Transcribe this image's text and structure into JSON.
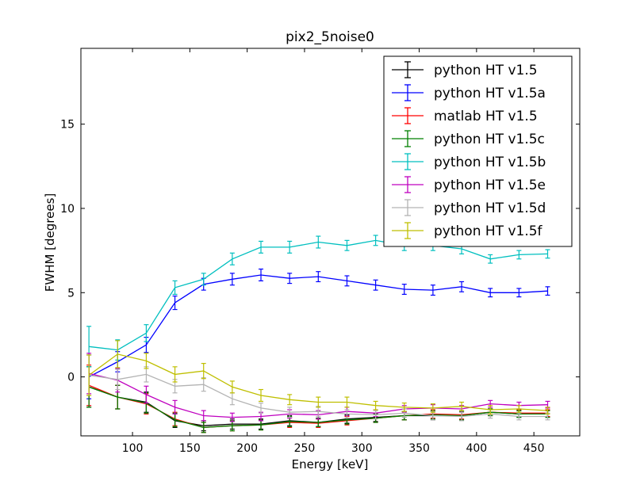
{
  "chart_data": {
    "type": "line",
    "title": "pix2_5noise0",
    "xlabel": "Energy [keV]",
    "ylabel": "FWHM [degrees]",
    "xlim": [
      55,
      490
    ],
    "ylim": [
      -3.5,
      19.5
    ],
    "xticks": [
      100,
      150,
      200,
      250,
      300,
      350,
      400,
      450
    ],
    "yticks": [
      0,
      5,
      10,
      15
    ],
    "grid": false,
    "legend_position": "top-right",
    "x": [
      62,
      87,
      112,
      137,
      162,
      187,
      212,
      237,
      262,
      287,
      312,
      337,
      362,
      387,
      412,
      437,
      462
    ],
    "series": [
      {
        "name": "python HT v1.5",
        "color": "#000000",
        "values": [
          -0.6,
          -1.2,
          -1.5,
          -2.6,
          -2.9,
          -2.8,
          -2.8,
          -2.6,
          -2.7,
          -2.5,
          -2.4,
          -2.3,
          -2.3,
          -2.3,
          -2.1,
          -2.2,
          -2.2
        ],
        "errors": [
          1.2,
          0.7,
          0.6,
          0.4,
          0.3,
          0.3,
          0.3,
          0.3,
          0.25,
          0.25,
          0.25,
          0.25,
          0.25,
          0.25,
          0.2,
          0.2,
          0.2
        ]
      },
      {
        "name": "python HT v1.5a",
        "color": "#0000ff",
        "values": [
          0.0,
          0.9,
          1.9,
          4.4,
          5.5,
          5.8,
          6.05,
          5.85,
          5.95,
          5.7,
          5.45,
          5.2,
          5.15,
          5.35,
          5.0,
          5.0,
          5.1
        ],
        "errors": [
          1.3,
          0.6,
          0.45,
          0.4,
          0.35,
          0.35,
          0.35,
          0.3,
          0.3,
          0.3,
          0.3,
          0.3,
          0.3,
          0.3,
          0.25,
          0.25,
          0.25
        ]
      },
      {
        "name": "matlab HT v1.5",
        "color": "#ff0000",
        "values": [
          -0.5,
          -1.2,
          -1.6,
          -2.5,
          -3.0,
          -2.9,
          -2.85,
          -2.7,
          -2.75,
          -2.6,
          -2.45,
          -2.3,
          -2.2,
          -2.25,
          -2.1,
          -2.15,
          -2.15
        ],
        "errors": [
          1.2,
          0.7,
          0.6,
          0.4,
          0.3,
          0.3,
          0.3,
          0.3,
          0.25,
          0.25,
          0.25,
          0.25,
          0.25,
          0.25,
          0.2,
          0.2,
          0.2
        ]
      },
      {
        "name": "python HT v1.5c",
        "color": "#008000",
        "values": [
          -0.6,
          -1.2,
          -1.55,
          -2.55,
          -3.0,
          -2.9,
          -2.85,
          -2.65,
          -2.7,
          -2.55,
          -2.45,
          -2.3,
          -2.25,
          -2.3,
          -2.1,
          -2.2,
          -2.2
        ],
        "errors": [
          1.2,
          0.7,
          0.6,
          0.4,
          0.3,
          0.3,
          0.3,
          0.3,
          0.25,
          0.25,
          0.25,
          0.25,
          0.25,
          0.25,
          0.2,
          0.2,
          0.2
        ]
      },
      {
        "name": "python HT v1.5b",
        "color": "#00bfbf",
        "values": [
          1.8,
          1.6,
          2.6,
          5.3,
          5.8,
          7.0,
          7.7,
          7.7,
          8.0,
          7.8,
          8.1,
          7.8,
          7.8,
          7.6,
          7.0,
          7.25,
          7.3
        ],
        "errors": [
          1.2,
          0.6,
          0.5,
          0.4,
          0.35,
          0.35,
          0.35,
          0.35,
          0.35,
          0.3,
          0.3,
          0.3,
          0.3,
          0.3,
          0.25,
          0.25,
          0.25
        ]
      },
      {
        "name": "python HT v1.5e",
        "color": "#bf00bf",
        "values": [
          0.2,
          -0.2,
          -1.05,
          -1.8,
          -2.3,
          -2.4,
          -2.35,
          -2.2,
          -2.25,
          -2.05,
          -2.15,
          -1.9,
          -1.85,
          -1.9,
          -1.6,
          -1.7,
          -1.65
        ],
        "errors": [
          1.2,
          0.7,
          0.5,
          0.4,
          0.3,
          0.25,
          0.25,
          0.25,
          0.25,
          0.25,
          0.2,
          0.2,
          0.2,
          0.2,
          0.2,
          0.2,
          0.2
        ]
      },
      {
        "name": "python HT v1.5d",
        "color": "#b3b3b3",
        "values": [
          0.1,
          -0.15,
          0.15,
          -0.55,
          -0.45,
          -1.3,
          -1.85,
          -2.1,
          -2.05,
          -2.2,
          -2.25,
          -2.15,
          -2.3,
          -2.35,
          -2.2,
          -2.35,
          -2.35
        ],
        "errors": [
          1.2,
          0.6,
          0.45,
          0.4,
          0.4,
          0.35,
          0.3,
          0.3,
          0.3,
          0.25,
          0.25,
          0.25,
          0.25,
          0.25,
          0.25,
          0.2,
          0.2
        ]
      },
      {
        "name": "python HT v1.5f",
        "color": "#bfbf00",
        "values": [
          0.1,
          1.35,
          0.95,
          0.15,
          0.35,
          -0.6,
          -1.1,
          -1.35,
          -1.5,
          -1.5,
          -1.7,
          -1.8,
          -1.85,
          -1.75,
          -1.95,
          -1.9,
          -2.0
        ],
        "errors": [
          1.2,
          0.8,
          0.45,
          0.45,
          0.45,
          0.35,
          0.35,
          0.3,
          0.3,
          0.3,
          0.25,
          0.25,
          0.25,
          0.25,
          0.25,
          0.2,
          0.2
        ]
      }
    ]
  }
}
